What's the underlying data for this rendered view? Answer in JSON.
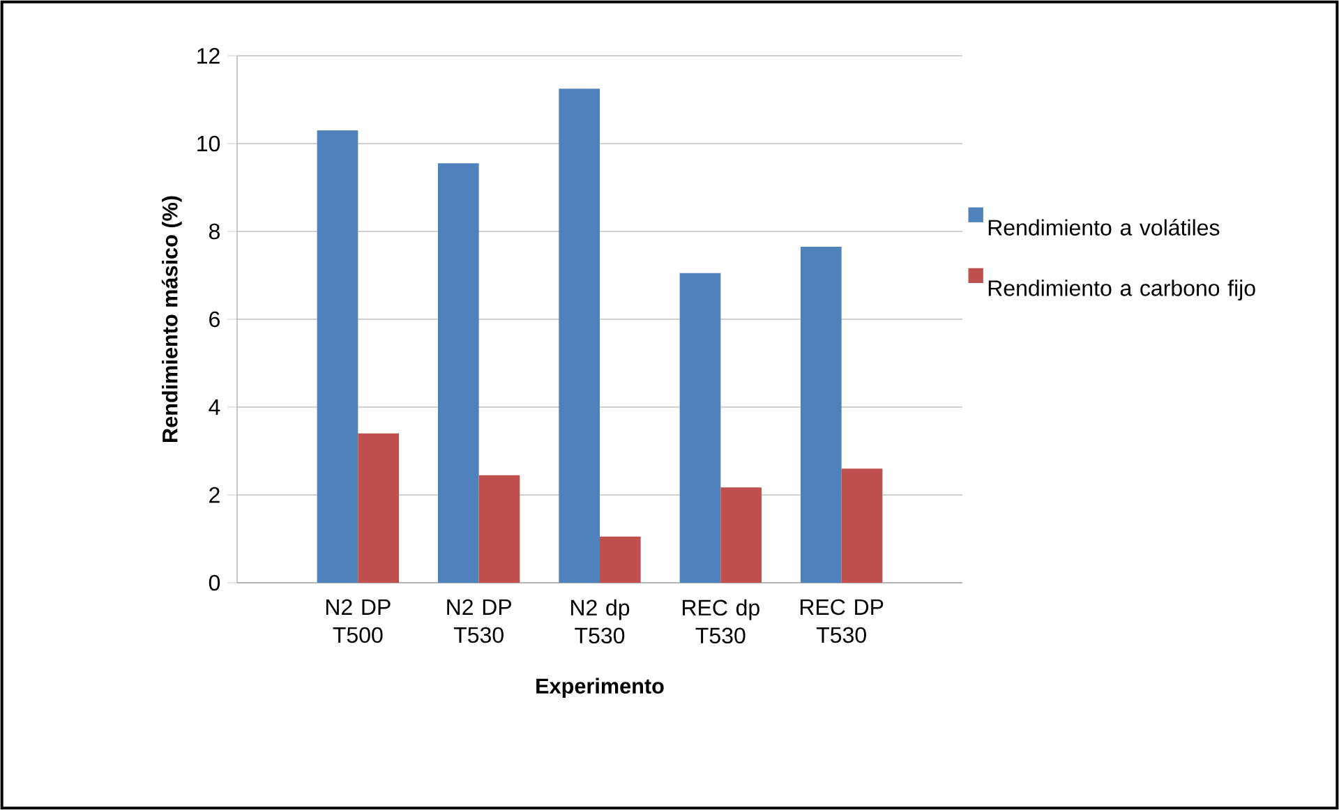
{
  "chart_data": {
    "type": "bar",
    "xlabel": "Experimento",
    "ylabel": "Rendimiento másico (%)",
    "categories": [
      "N2 DP T500",
      "N2 DP T530",
      "N2 dp T530",
      "REC dp T530",
      "REC DP T530"
    ],
    "series": [
      {
        "name": "Rendimiento a volátiles",
        "color": "#4f81bd",
        "values": [
          10.3,
          9.55,
          11.25,
          7.05,
          7.65
        ]
      },
      {
        "name": "Rendimiento a carbono fijo",
        "color": "#c0504d",
        "values": [
          3.4,
          2.45,
          1.05,
          2.17,
          2.6
        ]
      }
    ],
    "ylim": [
      0,
      12
    ],
    "yticks": [
      0,
      2,
      4,
      6,
      8,
      10,
      12
    ],
    "grid": "y",
    "legend": "right"
  }
}
